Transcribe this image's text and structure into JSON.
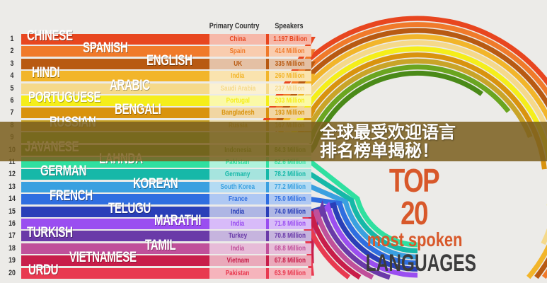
{
  "banner": {
    "title": "全球最受欢迎语言排名榜单揭秘！"
  },
  "infographic": {
    "title_top": "TOP 20",
    "title_mid": "most spoken",
    "title_bottom": "LANGUAGES"
  },
  "chart_data": {
    "type": "table",
    "columns": [
      "Primary Country",
      "Speakers"
    ],
    "rows": [
      {
        "rank": "1",
        "language": "CHINESE",
        "country": "China",
        "speakers": "1.197 Billion",
        "color": "#e8461f"
      },
      {
        "rank": "2",
        "language": "SPANISH",
        "country": "Spain",
        "speakers": "414 Million",
        "color": "#f07a2a"
      },
      {
        "rank": "3",
        "language": "ENGLISH",
        "country": "UK",
        "speakers": "335 Million",
        "color": "#b85a12"
      },
      {
        "rank": "4",
        "language": "HINDI",
        "country": "India",
        "speakers": "260 Million",
        "color": "#f2b52a"
      },
      {
        "rank": "5",
        "language": "ARABIC",
        "country": "Saudi Arabia",
        "speakers": "237 Million",
        "color": "#f5d98a"
      },
      {
        "rank": "6",
        "language": "PORTUGUESE",
        "country": "Portugal",
        "speakers": "203 Million",
        "color": "#f5ee1a"
      },
      {
        "rank": "7",
        "language": "BENGALI",
        "country": "Bangladesh",
        "speakers": "193 Million",
        "color": "#d9930e"
      },
      {
        "rank": "8",
        "language": "RUSSIAN",
        "country": "Russia",
        "speakers": "167 Million",
        "color": "#c9a428"
      },
      {
        "rank": "9",
        "language": "",
        "country": "",
        "speakers": "",
        "color": "#6aa520"
      },
      {
        "rank": "10",
        "language": "JAVANESE",
        "country": "Indonesia",
        "speakers": "84.3 Million",
        "color": "#4a8a18"
      },
      {
        "rank": "11",
        "language": "LAHNDA",
        "country": "Pakistan",
        "speakers": "82.6 Million",
        "color": "#2fe0a0"
      },
      {
        "rank": "12",
        "language": "GERMAN",
        "country": "Germany",
        "speakers": "78.2 Million",
        "color": "#16b8a8"
      },
      {
        "rank": "13",
        "language": "KOREAN",
        "country": "South Korea",
        "speakers": "77.2 Million",
        "color": "#3aa0e0"
      },
      {
        "rank": "14",
        "language": "FRENCH",
        "country": "France",
        "speakers": "75.0 Million",
        "color": "#2f6ee0"
      },
      {
        "rank": "15",
        "language": "TELUGU",
        "country": "India",
        "speakers": "74.0 Million",
        "color": "#2a3fb8"
      },
      {
        "rank": "16",
        "language": "MARATHI",
        "country": "India",
        "speakers": "71.8 Million",
        "color": "#9a4ef0"
      },
      {
        "rank": "17",
        "language": "TURKISH",
        "country": "Turkey",
        "speakers": "70.8 Million",
        "color": "#6a3aa8"
      },
      {
        "rank": "18",
        "language": "TAMIL",
        "country": "India",
        "speakers": "68.8 Million",
        "color": "#c0509a"
      },
      {
        "rank": "19",
        "language": "VIETNAMESE",
        "country": "Vietnam",
        "speakers": "67.8 Million",
        "color": "#c81e4a"
      },
      {
        "rank": "20",
        "language": "URDU",
        "country": "Pakistan",
        "speakers": "63.9 Million",
        "color": "#e83a50"
      }
    ]
  }
}
